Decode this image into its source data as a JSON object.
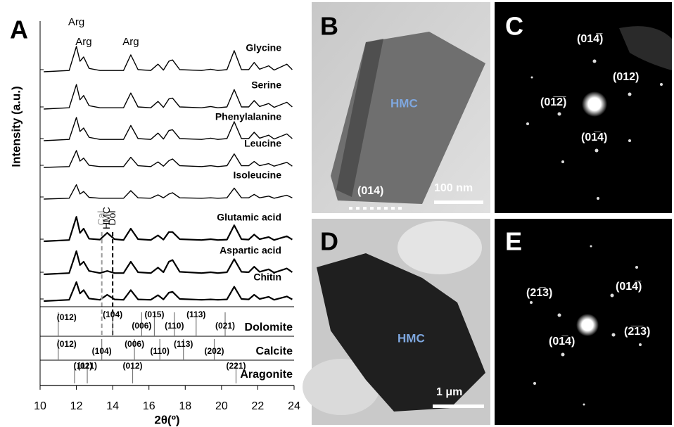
{
  "chart_data": {
    "type": "line",
    "panel_label": "A",
    "xlabel": "2θ(º)",
    "ylabel": "Intensity (a.u.)",
    "xlim": [
      10,
      24
    ],
    "xticks": [
      10,
      12,
      14,
      16,
      18,
      20,
      22,
      24
    ],
    "ylim": [
      0,
      100
    ],
    "x": [
      10.2,
      11.6,
      12.0,
      12.2,
      12.4,
      12.7,
      13.3,
      13.7,
      14.1,
      14.6,
      15.0,
      15.4,
      16.1,
      16.5,
      16.8,
      17.1,
      17.3,
      17.7,
      18.9,
      19.4,
      19.8,
      20.3,
      20.7,
      21.1,
      21.5,
      21.8,
      22.1,
      22.6,
      22.9,
      23.6,
      23.9
    ],
    "series": [
      {
        "name": "Glycine",
        "color": "#000000",
        "values": [
          0,
          3,
          60,
          25,
          35,
          8,
          3,
          3,
          3,
          3,
          40,
          5,
          3,
          18,
          4,
          25,
          28,
          5,
          3,
          6,
          3,
          5,
          50,
          5,
          5,
          22,
          6,
          14,
          4,
          18,
          5
        ]
      },
      {
        "name": "Serine",
        "color": "#000000",
        "values": [
          0,
          3,
          58,
          22,
          32,
          8,
          3,
          3,
          3,
          3,
          38,
          5,
          3,
          18,
          4,
          24,
          26,
          5,
          3,
          6,
          3,
          5,
          46,
          5,
          5,
          20,
          6,
          13,
          4,
          16,
          5
        ]
      },
      {
        "name": "Phenylalanine",
        "color": "#000000",
        "values": [
          0,
          3,
          55,
          22,
          30,
          8,
          3,
          3,
          3,
          3,
          36,
          5,
          3,
          18,
          4,
          24,
          26,
          5,
          3,
          6,
          3,
          5,
          45,
          5,
          5,
          20,
          6,
          13,
          4,
          16,
          5
        ]
      },
      {
        "name": "Leucine",
        "color": "#000000",
        "values": [
          0,
          2,
          40,
          15,
          22,
          5,
          2,
          2,
          2,
          2,
          24,
          4,
          2,
          13,
          3,
          16,
          20,
          4,
          2,
          4,
          2,
          4,
          32,
          4,
          4,
          14,
          4,
          9,
          3,
          12,
          3
        ]
      },
      {
        "name": "Isoleucine",
        "color": "#000000",
        "values": [
          0,
          2,
          34,
          12,
          18,
          4,
          2,
          2,
          2,
          2,
          20,
          3,
          2,
          10,
          3,
          12,
          15,
          3,
          2,
          3,
          2,
          3,
          26,
          3,
          3,
          11,
          3,
          7,
          2,
          9,
          3
        ]
      },
      {
        "name": "Glutamic acid",
        "color": "#000000",
        "values": [
          0,
          3,
          58,
          20,
          30,
          6,
          4,
          20,
          5,
          3,
          30,
          5,
          3,
          14,
          4,
          22,
          22,
          5,
          3,
          5,
          3,
          4,
          38,
          5,
          4,
          16,
          5,
          10,
          3,
          12,
          4
        ]
      },
      {
        "name": "Aspartic acid",
        "color": "#000000",
        "values": [
          0,
          3,
          55,
          22,
          30,
          8,
          3,
          8,
          3,
          3,
          30,
          5,
          3,
          16,
          5,
          30,
          34,
          6,
          3,
          5,
          3,
          5,
          36,
          6,
          5,
          18,
          6,
          12,
          4,
          14,
          5
        ]
      },
      {
        "name": "Chitin",
        "color": "#000000",
        "values": [
          0,
          3,
          45,
          18,
          26,
          6,
          3,
          15,
          4,
          3,
          26,
          4,
          3,
          14,
          4,
          20,
          22,
          5,
          3,
          4,
          3,
          4,
          34,
          5,
          4,
          15,
          5,
          10,
          3,
          11,
          4
        ]
      }
    ],
    "annotations": [
      {
        "text": "Arg",
        "x": 12.0
      },
      {
        "text": "Arg",
        "x": 12.4
      },
      {
        "text": "Arg",
        "x": 15.0
      },
      {
        "text": "Cal",
        "x": 13.4
      },
      {
        "text": "HMC",
        "x": 13.7
      },
      {
        "text": "Dol",
        "x": 14.0
      }
    ],
    "references": [
      {
        "name": "Dolomite",
        "peaks": [
          {
            "x": 11.0,
            "label": "(012)"
          },
          {
            "x": 14.0,
            "label": "(104)"
          },
          {
            "x": 15.6,
            "label": "(006)"
          },
          {
            "x": 16.3,
            "label": "(015)"
          },
          {
            "x": 17.4,
            "label": "(110)"
          },
          {
            "x": 18.6,
            "label": "(113)"
          },
          {
            "x": 20.2,
            "label": "(021)"
          }
        ]
      },
      {
        "name": "Calcite",
        "peaks": [
          {
            "x": 11.0,
            "label": "(012)"
          },
          {
            "x": 13.4,
            "label": "(104)"
          },
          {
            "x": 15.2,
            "label": "(006)"
          },
          {
            "x": 16.6,
            "label": "(110)"
          },
          {
            "x": 17.9,
            "label": "(113)"
          },
          {
            "x": 19.6,
            "label": "(202)"
          }
        ]
      },
      {
        "name": "Aragonite",
        "peaks": [
          {
            "x": 11.9,
            "label": "(111)"
          },
          {
            "x": 12.6,
            "label": "(021)"
          },
          {
            "x": 15.1,
            "label": "(012)"
          },
          {
            "x": 20.8,
            "label": "(221)"
          }
        ]
      }
    ]
  },
  "panel_b": {
    "label": "B",
    "phase": "HMC",
    "plane": "(014)",
    "scale_bar": "100 nm"
  },
  "panel_c": {
    "label": "C",
    "spots": [
      "(014̅)",
      "(012)",
      "(01̅2̅)",
      "(01̅4)"
    ]
  },
  "panel_d": {
    "label": "D",
    "phase": "HMC",
    "scale_bar": "1 μm"
  },
  "panel_e": {
    "label": "E",
    "spots": [
      "(21̅3)",
      "(014̅)",
      "(01̅4)",
      "(2̅1̅3)"
    ]
  }
}
